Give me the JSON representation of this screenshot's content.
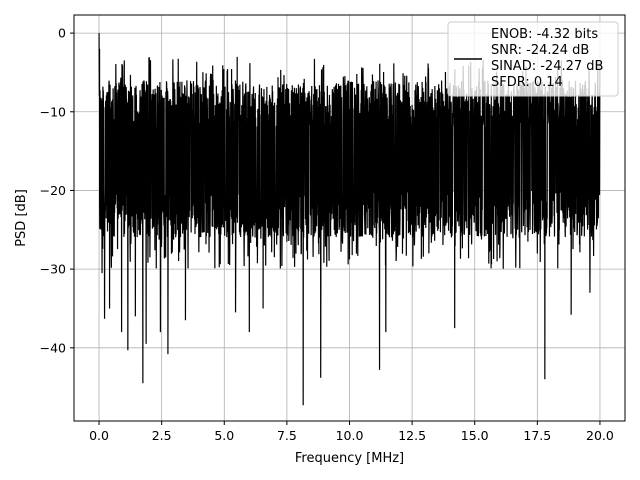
{
  "chart_data": {
    "type": "line",
    "title": "",
    "xlabel": "Frequency [MHz]",
    "ylabel": "PSD [dB]",
    "xlim": [
      -1.0,
      21.0
    ],
    "ylim": [
      -49.3,
      2.3
    ],
    "x_ticks": [
      0.0,
      2.5,
      5.0,
      7.5,
      10.0,
      12.5,
      15.0,
      17.5,
      20.0
    ],
    "x_tick_labels": [
      "0.0",
      "2.5",
      "5.0",
      "7.5",
      "10.0",
      "12.5",
      "15.0",
      "17.5",
      "20.0"
    ],
    "y_ticks": [
      0,
      -10,
      -20,
      -30,
      -40
    ],
    "y_tick_labels": [
      "0",
      "−10",
      "−20",
      "−30",
      "−40"
    ],
    "grid": true,
    "legend_position": "top-right",
    "series": [
      {
        "name": "",
        "color": "#000000",
        "x_range": [
          0.0,
          20.0
        ],
        "envelope": {
          "upper_typical": -6,
          "lower_typical": -26,
          "peak": [
            0.0,
            0.0
          ],
          "deep_dips": [
            [
              0.12,
              -30.5
            ],
            [
              0.22,
              -36.3
            ],
            [
              0.42,
              -35.0
            ],
            [
              0.9,
              -38.0
            ],
            [
              1.15,
              -40.3
            ],
            [
              1.45,
              -36.0
            ],
            [
              1.75,
              -44.5
            ],
            [
              1.88,
              -39.5
            ],
            [
              2.45,
              -38.0
            ],
            [
              2.75,
              -40.8
            ],
            [
              3.45,
              -36.5
            ],
            [
              5.45,
              -35.5
            ],
            [
              6.0,
              -38.0
            ],
            [
              6.55,
              -35.0
            ],
            [
              8.15,
              -47.3
            ],
            [
              8.85,
              -43.8
            ],
            [
              11.2,
              -42.8
            ],
            [
              11.45,
              -38.0
            ],
            [
              14.2,
              -37.5
            ],
            [
              17.8,
              -44.0
            ],
            [
              18.85,
              -35.8
            ],
            [
              19.6,
              -33.0
            ]
          ]
        }
      }
    ],
    "legend_entries": [
      "ENOB: -4.32 bits",
      "SNR: -24.24 dB",
      "SINAD: -24.27 dB",
      "SFDR: 0.14"
    ]
  }
}
